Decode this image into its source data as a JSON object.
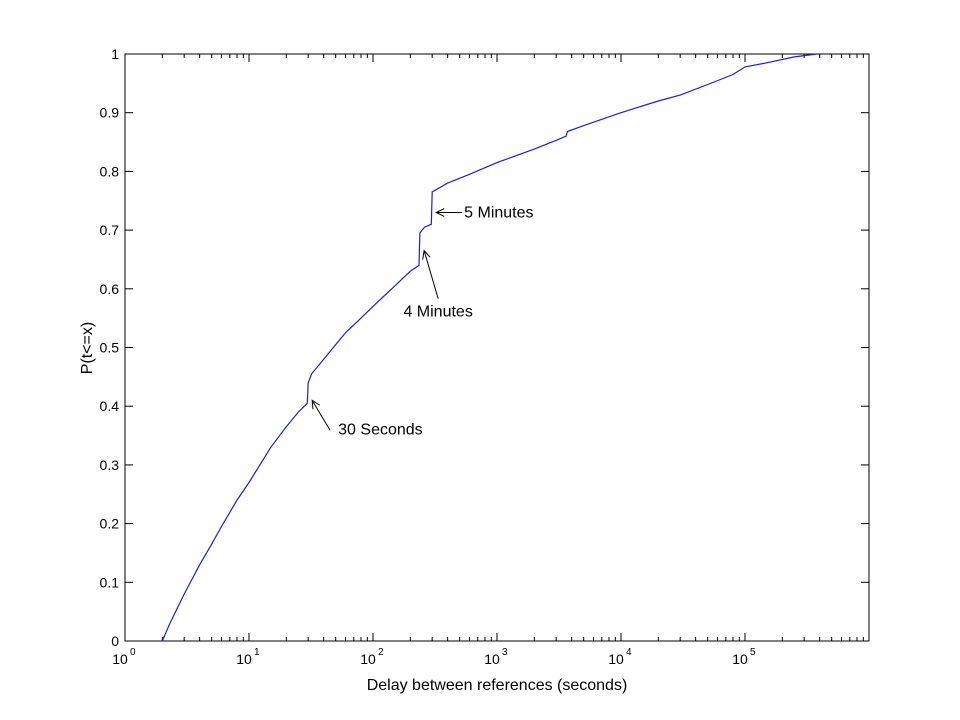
{
  "chart_data": {
    "type": "line",
    "title": "",
    "xlabel": "Delay between references (seconds)",
    "ylabel": "P(t<=x)",
    "xscale": "log",
    "xlim": [
      1,
      1000000
    ],
    "ylim": [
      0,
      1
    ],
    "grid": false,
    "line_color": "#1f1fd0",
    "x_ticks": [
      {
        "base": "10",
        "exp": "0"
      },
      {
        "base": "10",
        "exp": "1"
      },
      {
        "base": "10",
        "exp": "2"
      },
      {
        "base": "10",
        "exp": "3"
      },
      {
        "base": "10",
        "exp": "4"
      },
      {
        "base": "10",
        "exp": "5"
      }
    ],
    "y_ticks": [
      "0",
      "0.1",
      "0.2",
      "0.3",
      "0.4",
      "0.5",
      "0.6",
      "0.7",
      "0.8",
      "0.9",
      "1"
    ],
    "series": [
      {
        "points": [
          [
            2,
            0
          ],
          [
            2.3,
            0.03
          ],
          [
            3,
            0.08
          ],
          [
            4,
            0.13
          ],
          [
            5,
            0.165
          ],
          [
            6,
            0.195
          ],
          [
            8,
            0.24
          ],
          [
            10,
            0.27
          ],
          [
            15,
            0.33
          ],
          [
            20,
            0.365
          ],
          [
            25,
            0.39
          ],
          [
            29.5,
            0.405
          ],
          [
            30,
            0.44
          ],
          [
            32,
            0.455
          ],
          [
            40,
            0.48
          ],
          [
            50,
            0.505
          ],
          [
            60,
            0.525
          ],
          [
            80,
            0.55
          ],
          [
            100,
            0.57
          ],
          [
            150,
            0.605
          ],
          [
            200,
            0.63
          ],
          [
            235,
            0.64
          ],
          [
            239,
            0.695
          ],
          [
            260,
            0.705
          ],
          [
            295,
            0.71
          ],
          [
            300,
            0.765
          ],
          [
            400,
            0.78
          ],
          [
            600,
            0.795
          ],
          [
            1000,
            0.815
          ],
          [
            2000,
            0.838
          ],
          [
            3000,
            0.853
          ],
          [
            3600,
            0.86
          ],
          [
            3700,
            0.868
          ],
          [
            5000,
            0.878
          ],
          [
            10000,
            0.9
          ],
          [
            20000,
            0.92
          ],
          [
            30000,
            0.93
          ],
          [
            50000,
            0.948
          ],
          [
            80000,
            0.965
          ],
          [
            100000,
            0.978
          ],
          [
            150000,
            0.985
          ],
          [
            250000,
            0.995
          ],
          [
            380000,
            1.0
          ]
        ]
      }
    ],
    "annotations": [
      {
        "text": "30 Seconds",
        "x": 30,
        "y": 0.41
      },
      {
        "text": "4 Minutes",
        "x": 240,
        "y": 0.665
      },
      {
        "text": "5 Minutes",
        "x": 300,
        "y": 0.73
      }
    ]
  }
}
